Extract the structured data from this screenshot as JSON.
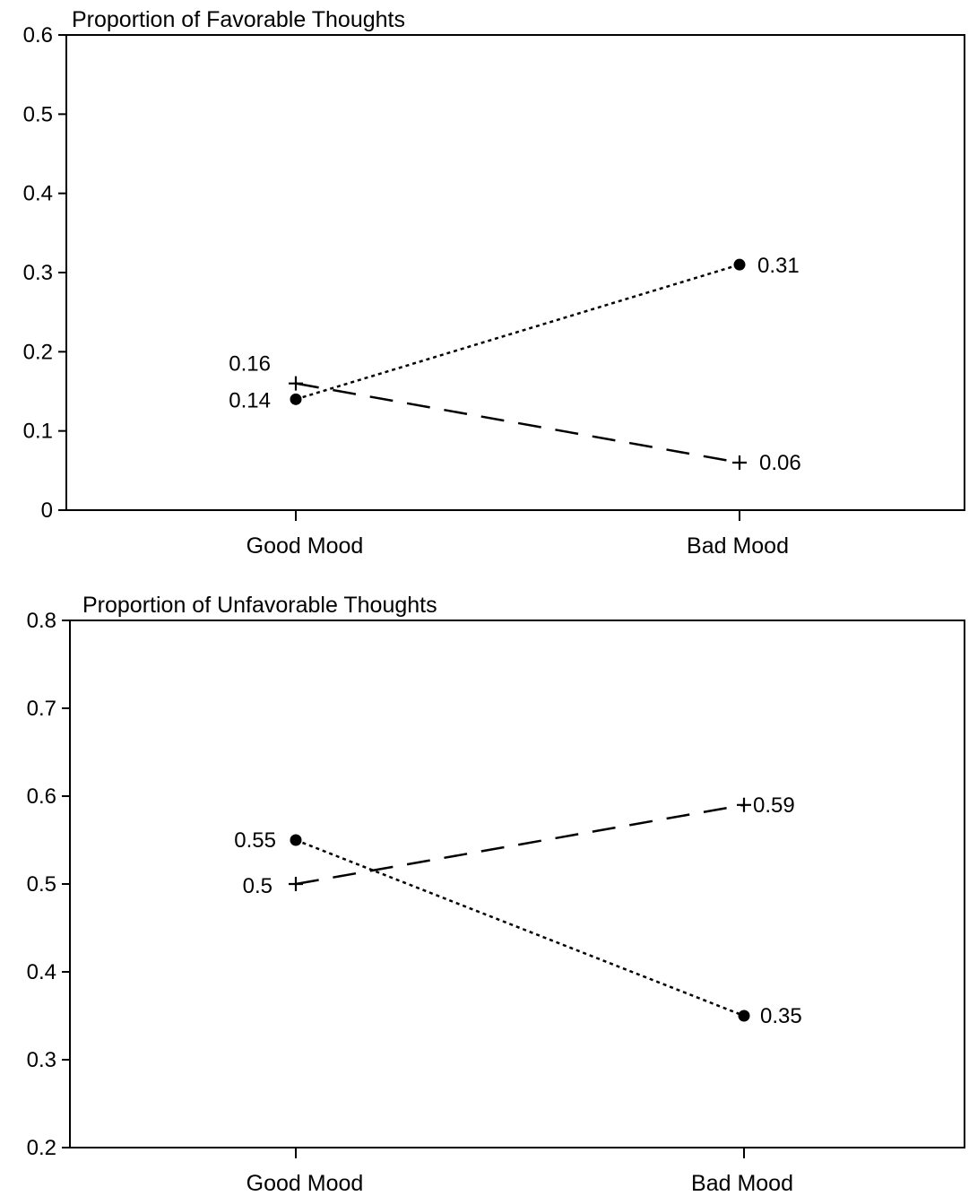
{
  "chart_data": [
    {
      "type": "line",
      "title": "Proportion of Favorable Thoughts",
      "xlabel": "",
      "ylabel": "",
      "categories": [
        "Good Mood",
        "Bad Mood"
      ],
      "ylim": [
        0,
        0.6
      ],
      "yticks": [
        "0",
        "0.1",
        "0.2",
        "0.3",
        "0.4",
        "0.5",
        "0.6"
      ],
      "grid": false,
      "series": [
        {
          "marker": "circle",
          "line_style": "dotted",
          "values": [
            0.14,
            0.31
          ],
          "labels": [
            "0.14",
            "0.31"
          ]
        },
        {
          "marker": "plus",
          "line_style": "dashed",
          "values": [
            0.16,
            0.06
          ],
          "labels": [
            "0.16",
            "0.06"
          ]
        }
      ]
    },
    {
      "type": "line",
      "title": "Proportion of Unfavorable Thoughts",
      "xlabel": "",
      "ylabel": "",
      "categories": [
        "Good Mood",
        "Bad Mood"
      ],
      "ylim": [
        0.2,
        0.8
      ],
      "yticks": [
        "0.2",
        "0.3",
        "0.4",
        "0.5",
        "0.6",
        "0.7",
        "0.8"
      ],
      "grid": false,
      "series": [
        {
          "marker": "circle",
          "line_style": "dotted",
          "values": [
            0.55,
            0.35
          ],
          "labels": [
            "0.55",
            "0.35"
          ]
        },
        {
          "marker": "plus",
          "line_style": "dashed",
          "values": [
            0.5,
            0.59
          ],
          "labels": [
            "0.5",
            "0.59"
          ]
        }
      ]
    }
  ]
}
